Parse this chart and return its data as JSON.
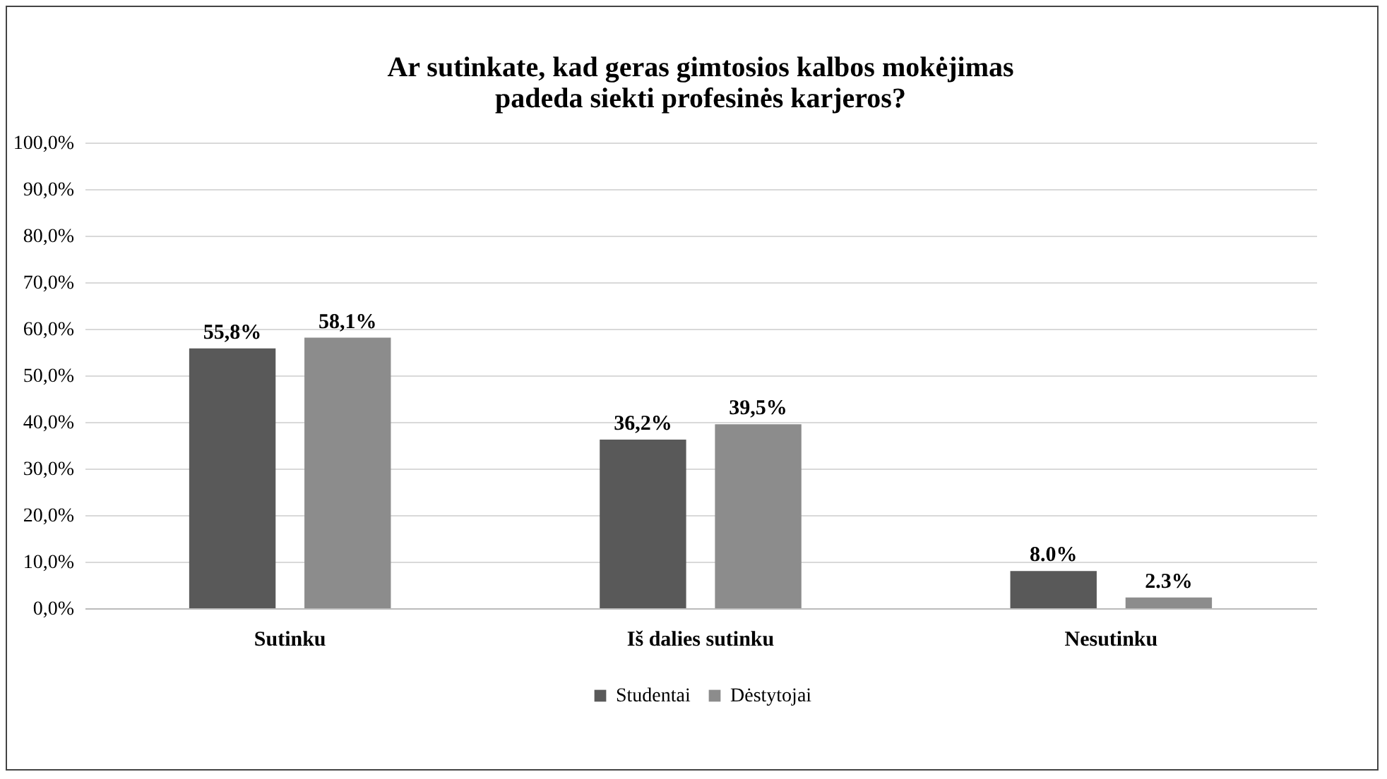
{
  "chart_data": {
    "type": "bar",
    "title": "Ar sutinkate, kad geras gimtosios kalbos mokėjimas\npadeda siekti profesinės karjeros?",
    "categories": [
      "Sutinku",
      "Iš dalies sutinku",
      "Nesutinku"
    ],
    "series": [
      {
        "name": "Studentai",
        "color": "#595959",
        "values": [
          55.8,
          36.2,
          8.0
        ],
        "value_labels": [
          "55,8%",
          "36,2%",
          "8.0%"
        ]
      },
      {
        "name": "Dėstytojai",
        "color": "#8c8c8c",
        "values": [
          58.1,
          39.5,
          2.3
        ],
        "value_labels": [
          "58,1%",
          "39,5%",
          "2.3%"
        ]
      }
    ],
    "ylim": [
      0,
      100
    ],
    "yticks": [
      {
        "value": 0,
        "label": "0,0%"
      },
      {
        "value": 10,
        "label": "10,0%"
      },
      {
        "value": 20,
        "label": "20,0%"
      },
      {
        "value": 30,
        "label": "30,0%"
      },
      {
        "value": 40,
        "label": "40,0%"
      },
      {
        "value": 50,
        "label": "50,0%"
      },
      {
        "value": 60,
        "label": "60,0%"
      },
      {
        "value": 70,
        "label": "70,0%"
      },
      {
        "value": 80,
        "label": "80,0%"
      },
      {
        "value": 90,
        "label": "90,0%"
      },
      {
        "value": 100,
        "label": "100,0%"
      }
    ],
    "grid": "y",
    "legend": "bottom"
  }
}
